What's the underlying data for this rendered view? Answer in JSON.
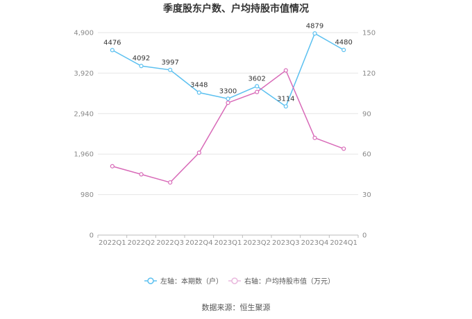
{
  "chart_data": {
    "type": "line",
    "title": "季度股东户数、户均持股市值情况",
    "categories": [
      "2022Q1",
      "2022Q2",
      "2022Q3",
      "2022Q4",
      "2023Q1",
      "2023Q2",
      "2023Q3",
      "2023Q4",
      "2024Q1"
    ],
    "y_left": {
      "ticks": [
        "4,900",
        "3,920",
        "2,940",
        "1,960",
        "980",
        "0"
      ],
      "ylim": [
        0,
        4900
      ]
    },
    "y_right": {
      "ticks": [
        "150",
        "120",
        "90",
        "60",
        "30",
        "0"
      ],
      "ylim": [
        0,
        150
      ]
    },
    "series": [
      {
        "name": "左轴：本期数（户）",
        "axis": "left",
        "color": "#5bc0f0",
        "values": [
          4476,
          4092,
          3997,
          3448,
          3300,
          3602,
          3114,
          4879,
          4480
        ],
        "labels": [
          "4476",
          "4092",
          "3997",
          "3448",
          "3300",
          "3602",
          "3114",
          "4879",
          "4480"
        ]
      },
      {
        "name": "右轴：户均持股市值（万元）",
        "axis": "right",
        "color": "#d86ab8",
        "values": [
          51,
          45,
          39,
          61,
          98,
          106,
          122,
          72,
          64
        ]
      }
    ],
    "grid": true,
    "legend": "bottom"
  },
  "source": "数据来源：恒生聚源"
}
